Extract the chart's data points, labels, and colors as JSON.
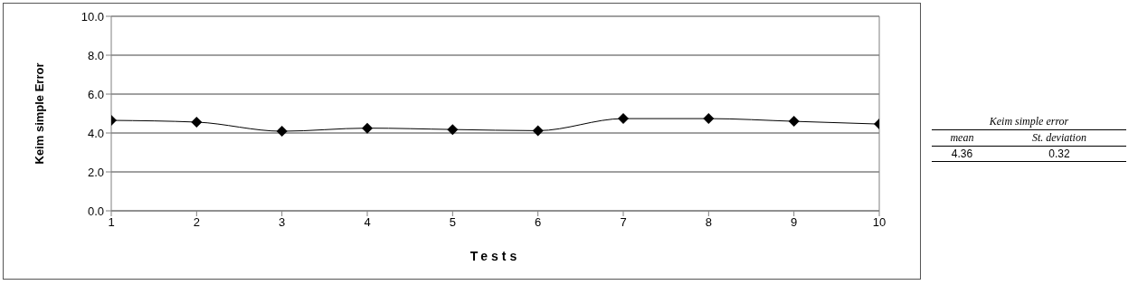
{
  "chart_data": {
    "type": "line",
    "xlabel": "Tests",
    "ylabel": "Keim simple Error",
    "x": [
      1,
      2,
      3,
      4,
      5,
      6,
      7,
      8,
      9,
      10
    ],
    "series": [
      {
        "color": "#000000",
        "values": [
          4.65,
          4.56,
          4.09,
          4.25,
          4.18,
          4.12,
          4.74,
          4.74,
          4.6,
          4.46
        ]
      }
    ],
    "xlim": [
      1,
      10
    ],
    "xticks": [
      1,
      2,
      3,
      4,
      5,
      6,
      7,
      8,
      9,
      10
    ],
    "ylim": [
      0,
      10
    ],
    "yticks": [
      {
        "value": 0,
        "label": "0.0"
      },
      {
        "value": 2,
        "label": "2.0"
      },
      {
        "value": 4,
        "label": "4.0"
      },
      {
        "value": 6,
        "label": "6.0"
      },
      {
        "value": 8,
        "label": "8.0"
      },
      {
        "value": 10,
        "label": "10.0"
      }
    ],
    "grid": "y",
    "marker": "diamond",
    "line_style": "solid",
    "legend": false,
    "annotations": [
      "Keim simple error",
      "mean",
      "St. deviation",
      "4.36",
      "0.32"
    ]
  }
}
